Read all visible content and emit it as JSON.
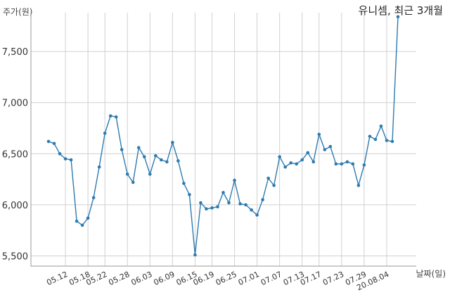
{
  "chart_data": {
    "type": "line",
    "title": "유니셈, 최근 3개월",
    "ylabel": "주가(원)",
    "xlabel": "날짜(일)",
    "ylim": [
      5400,
      7880
    ],
    "yticks": [
      5500,
      6000,
      6500,
      7000,
      7500
    ],
    "ytick_labels": [
      "5,500",
      "6,000",
      "6,500",
      "7,000",
      "7,500"
    ],
    "xtick_labels": [
      "05.12",
      "05.18",
      "05.22",
      "05.28",
      "06.03",
      "06.09",
      "06.15",
      "06.19",
      "06.25",
      "07.01",
      "07.07",
      "07.13",
      "07.17",
      "07.23",
      "07.29",
      "20.08.04"
    ],
    "xtick_index": [
      3,
      7,
      10,
      14,
      18,
      22,
      26,
      29,
      33,
      37,
      41,
      45,
      48,
      52,
      56,
      60
    ],
    "grid": true,
    "color": "#2e7bb0",
    "series": [
      {
        "values": [
          6620,
          6600,
          6500,
          6450,
          6440,
          5840,
          5800,
          5870,
          6070,
          6370,
          6700,
          6870,
          6860,
          6540,
          6300,
          6220,
          6560,
          6470,
          6300,
          6480,
          6440,
          6420,
          6610,
          6430,
          6210,
          6100,
          5510,
          6020,
          5960,
          5970,
          5980,
          6120,
          6020,
          6240,
          6010,
          6000,
          5950,
          5900,
          6050,
          6260,
          6190,
          6470,
          6370,
          6410,
          6400,
          6440,
          6510,
          6420,
          6690,
          6540,
          6570,
          6400,
          6400,
          6420,
          6400,
          6190,
          6390,
          6670,
          6640,
          6770,
          6630,
          6620,
          7840
        ]
      }
    ]
  }
}
